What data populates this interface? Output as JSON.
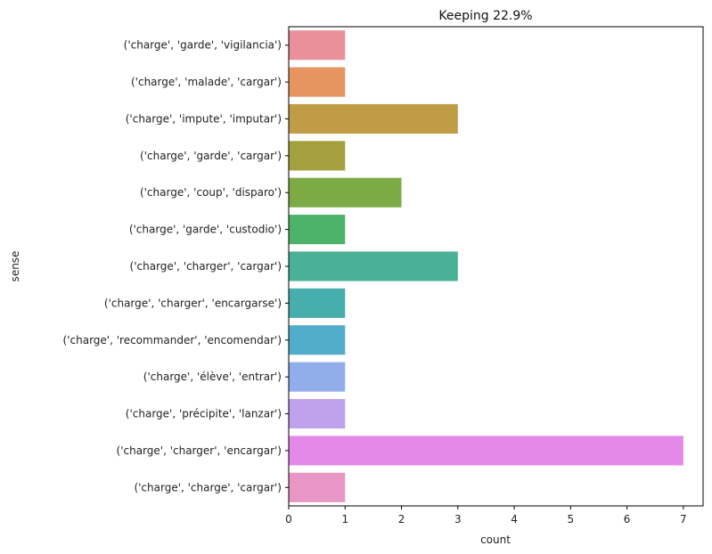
{
  "chart_data": {
    "type": "bar",
    "orientation": "horizontal",
    "title": "Keeping 22.9%",
    "xlabel": "count",
    "ylabel": "sense",
    "xlim": [
      0,
      7.35
    ],
    "xticks": [
      0,
      1,
      2,
      3,
      4,
      5,
      6,
      7
    ],
    "grid": false,
    "categories": [
      "('charge', 'garde', 'vigilancia')",
      "('charge', 'malade', 'cargar')",
      "('charge', 'impute', 'imputar')",
      "('charge', 'garde', 'cargar')",
      "('charge', 'coup', 'disparo')",
      "('charge', 'garde', 'custodio')",
      "('charge', 'charger', 'cargar')",
      "('charge', 'charger', 'encargarse')",
      "('charge', 'recommander', 'encomendar')",
      "('charge', 'élève', 'entrar')",
      "('charge', 'précipite', 'lanzar')",
      "('charge', 'charger', 'encargar')",
      "('charge', 'charge', 'cargar')"
    ],
    "values": [
      1,
      1,
      3,
      1,
      2,
      1,
      3,
      1,
      1,
      1,
      1,
      7,
      1
    ],
    "colors": [
      "#e8919b",
      "#e69460",
      "#c19c46",
      "#a5a03e",
      "#7cab46",
      "#4db36b",
      "#48b196",
      "#47aeae",
      "#52adcb",
      "#92aeea",
      "#c0a1ec",
      "#e589e8",
      "#e796c6"
    ]
  }
}
